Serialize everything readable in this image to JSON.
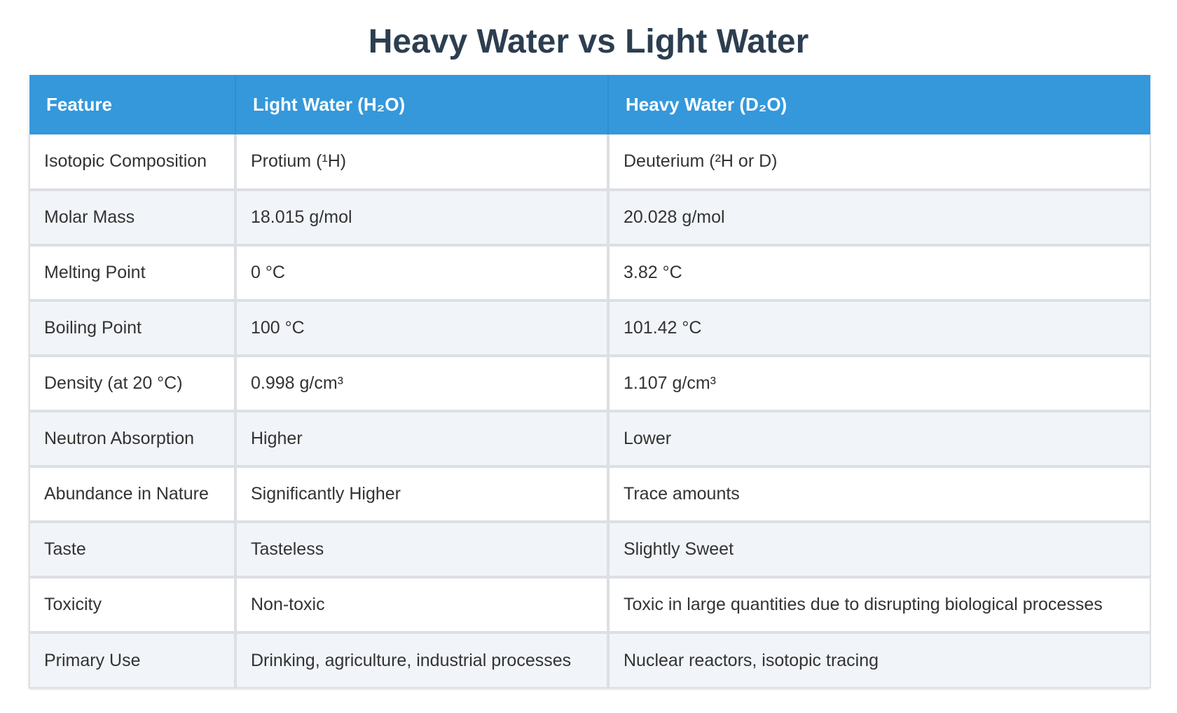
{
  "title": "Heavy Water vs Light Water",
  "columns": [
    "Feature",
    "Light Water (H₂O)",
    "Heavy Water (D₂O)"
  ],
  "rows": [
    [
      "Isotopic Composition",
      "Protium (¹H)",
      "Deuterium (²H or D)"
    ],
    [
      "Molar Mass",
      "18.015 g/mol",
      "20.028 g/mol"
    ],
    [
      "Melting Point",
      "0 °C",
      "3.82 °C"
    ],
    [
      "Boiling Point",
      "100 °C",
      "101.42 °C"
    ],
    [
      "Density (at 20 °C)",
      "0.998 g/cm³",
      "1.107 g/cm³"
    ],
    [
      "Neutron Absorption",
      "Higher",
      "Lower"
    ],
    [
      "Abundance in Nature",
      "Significantly Higher",
      "Trace amounts"
    ],
    [
      "Taste",
      "Tasteless",
      "Slightly Sweet"
    ],
    [
      "Toxicity",
      "Non-toxic",
      "Toxic in large quantities due to disrupting biological processes"
    ],
    [
      "Primary Use",
      "Drinking, agriculture, industrial processes",
      "Nuclear reactors, isotopic tracing"
    ]
  ],
  "colors": {
    "header_bg": "#3498db",
    "title_text": "#2c3e50",
    "row_alt_bg": "#f1f4f8",
    "border": "#dcdfe3"
  }
}
